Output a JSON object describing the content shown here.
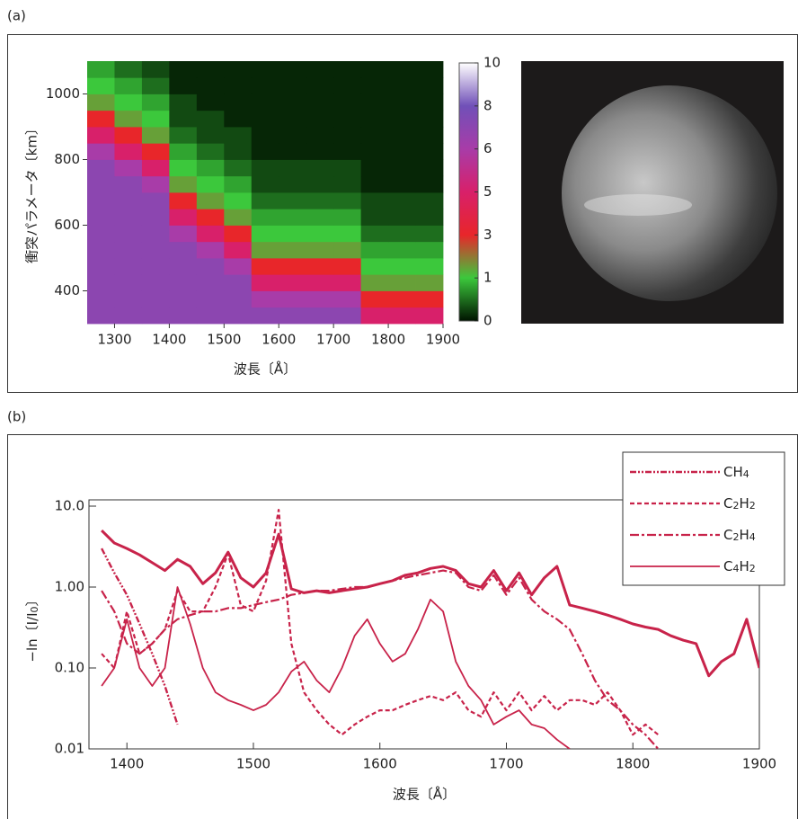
{
  "chart_data": [
    {
      "type": "heatmap",
      "panel_label": "(a)",
      "xlabel": "波長〔Å〕",
      "ylabel": "衝突パラメータ〔km〕",
      "xlim": [
        1250,
        1900
      ],
      "ylim": [
        300,
        1100
      ],
      "xticks": [
        1300,
        1400,
        1500,
        1600,
        1700,
        1800,
        1900
      ],
      "yticks": [
        400,
        600,
        800,
        1000
      ],
      "x_edges": [
        1250,
        1300,
        1350,
        1400,
        1450,
        1500,
        1550,
        1600,
        1650,
        1700,
        1750,
        1800,
        1850,
        1900
      ],
      "y_edges": [
        300,
        350,
        400,
        450,
        500,
        550,
        600,
        650,
        700,
        750,
        800,
        850,
        900,
        950,
        1000,
        1050,
        1100
      ],
      "z": [
        [
          7,
          7,
          7,
          7,
          7,
          7,
          7,
          7,
          7,
          7,
          5,
          5,
          5
        ],
        [
          7,
          7,
          7,
          7,
          7,
          7,
          6,
          6,
          6,
          6,
          3,
          3,
          3
        ],
        [
          7,
          7,
          7,
          7,
          7,
          7,
          5,
          5,
          5,
          5,
          1.5,
          1.5,
          1.5
        ],
        [
          7,
          7,
          7,
          7,
          7,
          6,
          3,
          3,
          3,
          3,
          1,
          1,
          1
        ],
        [
          7,
          7,
          7,
          7,
          6,
          5,
          1.5,
          1.5,
          1.5,
          1.5,
          0.8,
          0.8,
          0.8
        ],
        [
          7,
          7,
          7,
          6,
          5,
          3,
          1,
          1,
          1,
          1,
          0.5,
          0.5,
          0.5
        ],
        [
          7,
          7,
          7,
          5,
          3,
          1.5,
          0.8,
          0.8,
          0.8,
          0.8,
          0.3,
          0.3,
          0.3
        ],
        [
          7,
          7,
          7,
          3,
          1.5,
          1,
          0.5,
          0.5,
          0.5,
          0.5,
          0.3,
          0.3,
          0.3
        ],
        [
          7,
          7,
          6,
          1.5,
          1,
          0.8,
          0.3,
          0.3,
          0.3,
          0.3,
          0.1,
          0.1,
          0.1
        ],
        [
          7,
          6,
          5,
          1,
          0.8,
          0.5,
          0.3,
          0.3,
          0.3,
          0.3,
          0.1,
          0.1,
          0.1
        ],
        [
          6,
          5,
          3,
          0.8,
          0.5,
          0.3,
          0.1,
          0.1,
          0.1,
          0.1,
          0.1,
          0.1,
          0.1
        ],
        [
          5,
          3,
          1.5,
          0.5,
          0.3,
          0.3,
          0.1,
          0.1,
          0.1,
          0.1,
          0.1,
          0.1,
          0.1
        ],
        [
          3,
          1.5,
          1,
          0.3,
          0.3,
          0.1,
          0.1,
          0.1,
          0.1,
          0.1,
          0.1,
          0.1,
          0.1
        ],
        [
          1.5,
          1,
          0.8,
          0.3,
          0.1,
          0.1,
          0.1,
          0.1,
          0.1,
          0.1,
          0.1,
          0.1,
          0.1
        ],
        [
          1,
          0.8,
          0.5,
          0.1,
          0.1,
          0.1,
          0.1,
          0.1,
          0.1,
          0.1,
          0.1,
          0.1,
          0.1
        ],
        [
          0.8,
          0.5,
          0.3,
          0.1,
          0.1,
          0.1,
          0.1,
          0.1,
          0.1,
          0.1,
          0.1,
          0.1,
          0.1
        ]
      ],
      "colorbar_ticks": [
        0,
        1,
        3,
        5,
        6,
        8,
        10
      ],
      "colorbar_colors": [
        "#001400",
        "#3cc83c",
        "#e8262a",
        "#d8206a",
        "#a83ca8",
        "#7050b8",
        "#ffffff"
      ]
    },
    {
      "type": "line",
      "panel_label": "(b)",
      "xlabel": "波長〔Å〕",
      "ylabel": "−ln〔I/I0〕",
      "log_y": true,
      "xlim": [
        1370,
        1900
      ],
      "ylim": [
        0.01,
        10
      ],
      "xticks": [
        1400,
        1500,
        1600,
        1700,
        1800,
        1900
      ],
      "yticks": [
        0.01,
        {
          "value": 0.1,
          "label": "0.10"
        },
        {
          "value": 1,
          "label": "1.00"
        },
        {
          "value": 10,
          "label": "10.0"
        }
      ],
      "legend": "upper right",
      "x": [
        1380,
        1390,
        1400,
        1410,
        1420,
        1430,
        1440,
        1450,
        1460,
        1470,
        1480,
        1490,
        1500,
        1510,
        1520,
        1530,
        1540,
        1550,
        1560,
        1570,
        1580,
        1590,
        1600,
        1610,
        1620,
        1630,
        1640,
        1650,
        1660,
        1670,
        1680,
        1690,
        1700,
        1710,
        1720,
        1730,
        1740,
        1750,
        1760,
        1770,
        1780,
        1790,
        1800,
        1810,
        1820,
        1830,
        1840,
        1850,
        1860,
        1870,
        1880,
        1890,
        1900
      ],
      "series": [
        {
          "name": "CH4",
          "color": "#c8234a",
          "linestyle": "dashdotdot",
          "values": [
            3,
            1.5,
            0.8,
            0.35,
            0.15,
            0.06,
            0.02,
            null,
            null,
            null,
            null,
            null,
            null,
            null,
            null,
            null,
            null,
            null,
            null,
            null,
            null,
            null,
            null,
            null,
            null,
            null,
            null,
            null,
            null,
            null,
            null,
            null,
            null,
            null,
            null,
            null,
            null,
            null,
            null,
            null,
            null,
            null,
            null,
            null,
            null,
            null,
            null,
            null,
            null,
            null,
            null,
            null,
            null
          ]
        },
        {
          "name": "C2H2",
          "color": "#c8234a",
          "linestyle": "dashed",
          "values": [
            0.15,
            0.1,
            0.5,
            0.15,
            0.2,
            0.3,
            0.9,
            0.5,
            0.5,
            1,
            2.6,
            0.6,
            0.5,
            1.2,
            9,
            0.2,
            0.05,
            0.03,
            0.02,
            0.015,
            0.02,
            0.025,
            0.03,
            0.03,
            0.035,
            0.04,
            0.045,
            0.04,
            0.05,
            0.03,
            0.025,
            0.05,
            0.03,
            0.05,
            0.03,
            0.045,
            0.03,
            0.04,
            0.04,
            0.035,
            0.05,
            0.03,
            0.015,
            0.02,
            0.015,
            null,
            null,
            0.015,
            null,
            null,
            null,
            null,
            null
          ]
        },
        {
          "name": "C2H4",
          "color": "#c8234a",
          "linestyle": "dashdot",
          "values": [
            0.9,
            0.5,
            0.2,
            0.15,
            0.2,
            0.3,
            0.4,
            0.45,
            0.5,
            0.5,
            0.55,
            0.55,
            0.6,
            0.65,
            0.7,
            0.8,
            0.85,
            0.9,
            0.9,
            0.95,
            1,
            1,
            1.1,
            1.2,
            1.3,
            1.4,
            1.5,
            1.6,
            1.5,
            1,
            0.9,
            1.4,
            0.8,
            1.3,
            0.7,
            0.5,
            0.4,
            0.3,
            0.15,
            0.07,
            0.04,
            0.03,
            0.02,
            0.015,
            0.01,
            null,
            null,
            null,
            null,
            null,
            null,
            null,
            null
          ]
        },
        {
          "name": "C4H2",
          "color": "#c8234a",
          "linestyle": "solid",
          "values": [
            0.06,
            0.1,
            0.4,
            0.1,
            0.06,
            0.1,
            1,
            0.35,
            0.1,
            0.05,
            0.04,
            0.035,
            0.03,
            0.035,
            0.05,
            0.09,
            0.12,
            0.07,
            0.05,
            0.1,
            0.25,
            0.4,
            0.2,
            0.12,
            0.15,
            0.3,
            0.7,
            0.5,
            0.12,
            0.06,
            0.04,
            0.02,
            0.025,
            0.03,
            0.02,
            0.018,
            0.013,
            0.01,
            null,
            null,
            null,
            null,
            null,
            null,
            null,
            null,
            null,
            null,
            null,
            null,
            null,
            null,
            null
          ]
        },
        {
          "color": "#c8234a",
          "linestyle": "bold",
          "values": [
            5,
            3.5,
            3,
            2.5,
            2,
            1.6,
            2.2,
            1.8,
            1.1,
            1.5,
            2.7,
            1.3,
            1,
            1.5,
            4.5,
            0.95,
            0.85,
            0.9,
            0.85,
            0.9,
            0.95,
            1,
            1.1,
            1.2,
            1.4,
            1.5,
            1.7,
            1.8,
            1.6,
            1.1,
            1,
            1.6,
            0.9,
            1.5,
            0.8,
            1.3,
            1.8,
            0.6,
            0.55,
            0.5,
            0.45,
            0.4,
            0.35,
            0.32,
            0.3,
            0.25,
            0.22,
            0.2,
            0.08,
            0.12,
            0.15,
            0.4,
            0.1
          ]
        }
      ]
    }
  ]
}
